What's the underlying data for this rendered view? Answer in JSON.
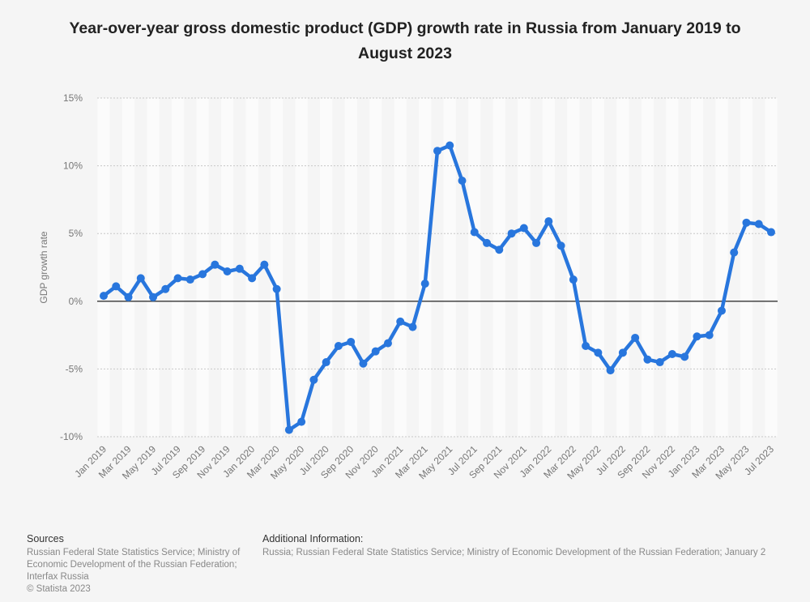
{
  "chart_data": {
    "type": "line",
    "title": "Year-over-year gross domestic product (GDP) growth rate in Russia from January 2019 to August 2023",
    "xlabel": "",
    "ylabel": "GDP growth rate",
    "ylim": [
      -10,
      15
    ],
    "yticks": [
      "-10%",
      "-5%",
      "0%",
      "5%",
      "10%",
      "15%"
    ],
    "ytick_values": [
      -10,
      -5,
      0,
      5,
      10,
      15
    ],
    "grid": true,
    "legend": "none",
    "color": "#2876dd",
    "x": [
      "Jan 2019",
      "Feb 2019",
      "Mar 2019",
      "Apr 2019",
      "May 2019",
      "Jun 2019",
      "Jul 2019",
      "Aug 2019",
      "Sep 2019",
      "Oct 2019",
      "Nov 2019",
      "Dec 2019",
      "Jan 2020",
      "Feb 2020",
      "Mar 2020",
      "Apr 2020",
      "May 2020",
      "Jun 2020",
      "Jul 2020",
      "Aug 2020",
      "Sep 2020",
      "Oct 2020",
      "Nov 2020",
      "Dec 2020",
      "Jan 2021",
      "Feb 2021",
      "Mar 2021",
      "Apr 2021",
      "May 2021",
      "Jun 2021",
      "Jul 2021",
      "Aug 2021",
      "Sep 2021",
      "Oct 2021",
      "Nov 2021",
      "Dec 2021",
      "Jan 2022",
      "Feb 2022",
      "Mar 2022",
      "Apr 2022",
      "May 2022",
      "Jun 2022",
      "Jul 2022",
      "Aug 2022",
      "Sep 2022",
      "Oct 2022",
      "Nov 2022",
      "Dec 2022",
      "Jan 2023",
      "Feb 2023",
      "Mar 2023",
      "Apr 2023",
      "May 2023",
      "Jun 2023",
      "Jul 2023"
    ],
    "xticks": [
      "Jan 2019",
      "Mar 2019",
      "May 2019",
      "Jul 2019",
      "Sep 2019",
      "Nov 2019",
      "Jan 2020",
      "Mar 2020",
      "May 2020",
      "Jul 2020",
      "Sep 2020",
      "Nov 2020",
      "Jan 2021",
      "Mar 2021",
      "May 2021",
      "Jul 2021",
      "Sep 2021",
      "Nov 2021",
      "Jan 2022",
      "Mar 2022",
      "May 2022",
      "Jul 2022",
      "Sep 2022",
      "Nov 2022",
      "Jan 2023",
      "Mar 2023",
      "May 2023",
      "Jul 2023"
    ],
    "values": [
      0.4,
      1.1,
      0.3,
      1.7,
      0.3,
      0.9,
      1.7,
      1.6,
      2.0,
      2.7,
      2.2,
      2.4,
      1.7,
      2.7,
      0.9,
      -9.5,
      -8.9,
      -5.8,
      -4.5,
      -3.3,
      -3.0,
      -4.6,
      -3.7,
      -3.1,
      -1.5,
      -1.9,
      1.3,
      11.1,
      11.5,
      8.9,
      5.1,
      4.3,
      3.8,
      5.0,
      5.4,
      4.3,
      5.9,
      4.1,
      1.6,
      -3.3,
      -3.8,
      -5.1,
      -3.8,
      -2.7,
      -4.3,
      -4.5,
      -3.9,
      -4.1,
      -2.6,
      -2.5,
      -0.7,
      3.6,
      5.8,
      5.7,
      5.1
    ]
  },
  "footer": {
    "sources_heading": "Sources",
    "sources_text": "Russian Federal State Statistics Service; Ministry of Economic Development of the Russian Federation; Interfax Russia",
    "copyright": "© Statista 2023",
    "additional_heading": "Additional Information:",
    "additional_text": "Russia; Russian Federal State Statistics Service; Ministry of Economic Development of the Russian Federation; January 2"
  }
}
